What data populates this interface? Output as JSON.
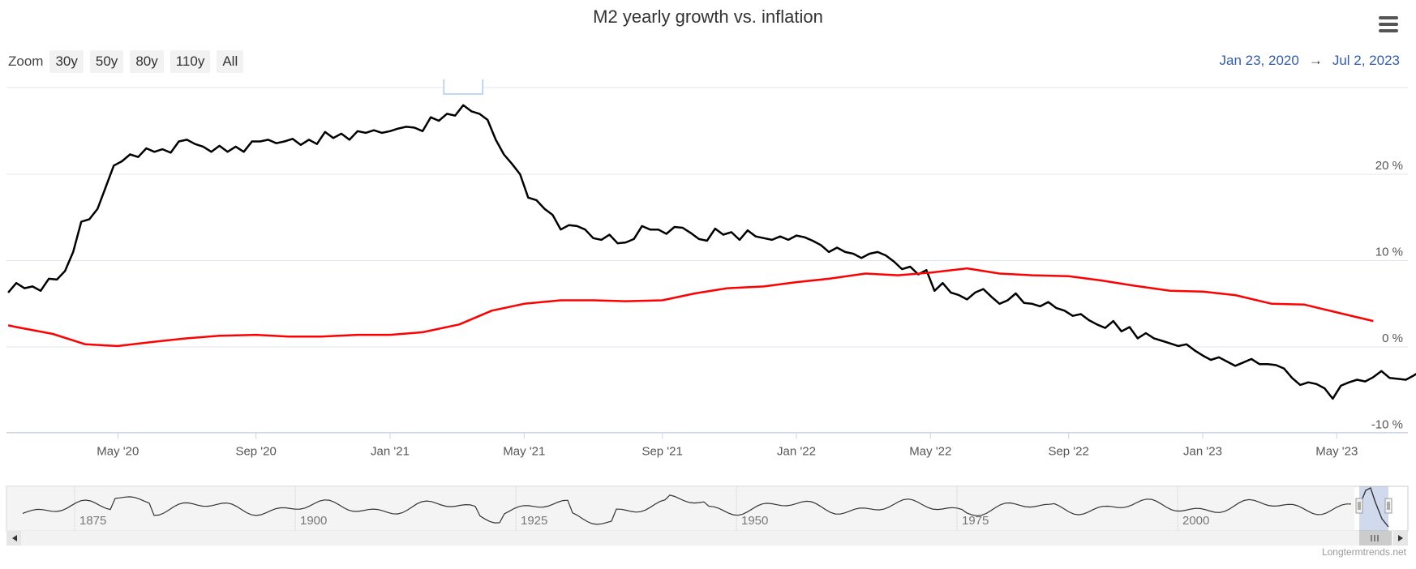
{
  "header": {
    "title": "M2 yearly growth vs. inflation",
    "zoom_label": "Zoom",
    "zoom_buttons": [
      "30y",
      "50y",
      "80y",
      "110y",
      "All"
    ],
    "range_from": "Jan 23, 2020",
    "range_arrow": "→",
    "range_to": "Jul 2, 2023",
    "menu_icon": "hamburger-menu-icon"
  },
  "chart_data": {
    "type": "line",
    "title": "M2 yearly growth vs. inflation",
    "xlabel": "",
    "ylabel": "",
    "xlim": [
      2020.06,
      2023.55
    ],
    "ylim": [
      -10,
      30
    ],
    "x_ticks": [
      {
        "label": "May '20",
        "x": 2020.33
      },
      {
        "label": "Sep '20",
        "x": 2020.67
      },
      {
        "label": "Jan '21",
        "x": 2021.0
      },
      {
        "label": "May '21",
        "x": 2021.33
      },
      {
        "label": "Sep '21",
        "x": 2021.67
      },
      {
        "label": "Jan '22",
        "x": 2022.0
      },
      {
        "label": "May '22",
        "x": 2022.33
      },
      {
        "label": "Sep '22",
        "x": 2022.67
      },
      {
        "label": "Jan '23",
        "x": 2023.0
      },
      {
        "label": "May '23",
        "x": 2023.33
      }
    ],
    "y_ticks": [
      {
        "label": "20 %",
        "y": 20
      },
      {
        "label": "10 %",
        "y": 10
      },
      {
        "label": "0 %",
        "y": 0
      },
      {
        "label": "-10 %",
        "y": -10
      }
    ],
    "grid": true,
    "series": [
      {
        "name": "M2 yearly growth",
        "color": "#000000",
        "points": [
          [
            2020.06,
            6.3
          ],
          [
            2020.08,
            7.4
          ],
          [
            2020.1,
            6.8
          ],
          [
            2020.12,
            7.0
          ],
          [
            2020.14,
            6.5
          ],
          [
            2020.16,
            7.9
          ],
          [
            2020.18,
            7.8
          ],
          [
            2020.2,
            8.8
          ],
          [
            2020.22,
            11.0
          ],
          [
            2020.24,
            14.5
          ],
          [
            2020.26,
            14.8
          ],
          [
            2020.28,
            16.0
          ],
          [
            2020.3,
            18.5
          ],
          [
            2020.32,
            21.0
          ],
          [
            2020.34,
            21.5
          ],
          [
            2020.36,
            22.3
          ],
          [
            2020.38,
            22.0
          ],
          [
            2020.4,
            23.0
          ],
          [
            2020.42,
            22.6
          ],
          [
            2020.44,
            22.9
          ],
          [
            2020.46,
            22.5
          ],
          [
            2020.48,
            23.8
          ],
          [
            2020.5,
            24.0
          ],
          [
            2020.52,
            23.5
          ],
          [
            2020.54,
            23.2
          ],
          [
            2020.56,
            22.6
          ],
          [
            2020.58,
            23.3
          ],
          [
            2020.6,
            22.6
          ],
          [
            2020.62,
            23.2
          ],
          [
            2020.64,
            22.6
          ],
          [
            2020.66,
            23.8
          ],
          [
            2020.68,
            23.8
          ],
          [
            2020.7,
            24.0
          ],
          [
            2020.72,
            23.6
          ],
          [
            2020.74,
            23.8
          ],
          [
            2020.76,
            24.1
          ],
          [
            2020.78,
            23.4
          ],
          [
            2020.8,
            24.0
          ],
          [
            2020.82,
            23.5
          ],
          [
            2020.84,
            24.9
          ],
          [
            2020.86,
            24.2
          ],
          [
            2020.88,
            24.7
          ],
          [
            2020.9,
            24.0
          ],
          [
            2020.92,
            25.0
          ],
          [
            2020.94,
            24.8
          ],
          [
            2020.96,
            25.1
          ],
          [
            2020.98,
            24.8
          ],
          [
            2021.0,
            25.0
          ],
          [
            2021.02,
            25.3
          ],
          [
            2021.04,
            25.5
          ],
          [
            2021.06,
            25.4
          ],
          [
            2021.08,
            25.0
          ],
          [
            2021.1,
            26.6
          ],
          [
            2021.12,
            26.2
          ],
          [
            2021.14,
            27.0
          ],
          [
            2021.16,
            26.8
          ],
          [
            2021.18,
            28.0
          ],
          [
            2021.2,
            27.3
          ],
          [
            2021.22,
            27.0
          ],
          [
            2021.24,
            26.3
          ],
          [
            2021.26,
            24.0
          ],
          [
            2021.28,
            22.3
          ],
          [
            2021.3,
            21.2
          ],
          [
            2021.32,
            20.0
          ],
          [
            2021.34,
            17.3
          ],
          [
            2021.36,
            17.0
          ],
          [
            2021.38,
            16.0
          ],
          [
            2021.4,
            15.3
          ],
          [
            2021.42,
            13.6
          ],
          [
            2021.44,
            14.1
          ],
          [
            2021.46,
            14.0
          ],
          [
            2021.48,
            13.6
          ],
          [
            2021.5,
            12.6
          ],
          [
            2021.52,
            12.4
          ],
          [
            2021.54,
            13.0
          ],
          [
            2021.56,
            12.0
          ],
          [
            2021.58,
            12.1
          ],
          [
            2021.6,
            12.5
          ],
          [
            2021.62,
            14.0
          ],
          [
            2021.64,
            13.6
          ],
          [
            2021.66,
            13.6
          ],
          [
            2021.68,
            13.1
          ],
          [
            2021.7,
            13.9
          ],
          [
            2021.72,
            13.8
          ],
          [
            2021.74,
            13.2
          ],
          [
            2021.76,
            12.5
          ],
          [
            2021.78,
            12.3
          ],
          [
            2021.8,
            13.7
          ],
          [
            2021.82,
            13.0
          ],
          [
            2021.84,
            13.3
          ],
          [
            2021.86,
            12.4
          ],
          [
            2021.88,
            13.5
          ],
          [
            2021.9,
            12.8
          ],
          [
            2021.92,
            12.6
          ],
          [
            2021.94,
            12.4
          ],
          [
            2021.96,
            12.8
          ],
          [
            2021.98,
            12.4
          ],
          [
            2022.0,
            12.9
          ],
          [
            2022.02,
            12.7
          ],
          [
            2022.04,
            12.3
          ],
          [
            2022.06,
            11.8
          ],
          [
            2022.08,
            11.0
          ],
          [
            2022.1,
            11.5
          ],
          [
            2022.12,
            11.0
          ],
          [
            2022.14,
            10.8
          ],
          [
            2022.16,
            10.3
          ],
          [
            2022.18,
            10.8
          ],
          [
            2022.2,
            11.0
          ],
          [
            2022.22,
            10.6
          ],
          [
            2022.24,
            9.9
          ],
          [
            2022.26,
            9.0
          ],
          [
            2022.28,
            9.3
          ],
          [
            2022.3,
            8.4
          ],
          [
            2022.32,
            8.9
          ],
          [
            2022.34,
            6.5
          ],
          [
            2022.36,
            7.4
          ],
          [
            2022.38,
            6.3
          ],
          [
            2022.4,
            6.0
          ],
          [
            2022.42,
            5.5
          ],
          [
            2022.44,
            6.3
          ],
          [
            2022.46,
            6.7
          ],
          [
            2022.48,
            5.8
          ],
          [
            2022.5,
            5.0
          ],
          [
            2022.52,
            5.4
          ],
          [
            2022.54,
            6.2
          ],
          [
            2022.56,
            5.1
          ],
          [
            2022.58,
            5.0
          ],
          [
            2022.6,
            4.7
          ],
          [
            2022.62,
            5.2
          ],
          [
            2022.64,
            4.5
          ],
          [
            2022.66,
            4.2
          ],
          [
            2022.68,
            3.6
          ],
          [
            2022.7,
            3.8
          ],
          [
            2022.72,
            3.1
          ],
          [
            2022.74,
            2.6
          ],
          [
            2022.76,
            2.2
          ],
          [
            2022.78,
            3.0
          ],
          [
            2022.8,
            1.8
          ],
          [
            2022.82,
            2.3
          ],
          [
            2022.84,
            1.0
          ],
          [
            2022.86,
            1.6
          ],
          [
            2022.88,
            1.0
          ],
          [
            2022.9,
            0.7
          ],
          [
            2022.92,
            0.4
          ],
          [
            2022.94,
            0.1
          ],
          [
            2022.96,
            0.3
          ],
          [
            2022.98,
            -0.4
          ],
          [
            2023.0,
            -1.0
          ],
          [
            2023.02,
            -1.5
          ],
          [
            2023.04,
            -1.2
          ],
          [
            2023.06,
            -1.7
          ],
          [
            2023.08,
            -2.2
          ],
          [
            2023.1,
            -1.8
          ],
          [
            2023.12,
            -1.4
          ],
          [
            2023.14,
            -2.0
          ],
          [
            2023.16,
            -2.0
          ],
          [
            2023.18,
            -2.1
          ],
          [
            2023.2,
            -2.5
          ],
          [
            2023.22,
            -3.6
          ],
          [
            2023.24,
            -4.4
          ],
          [
            2023.26,
            -4.1
          ],
          [
            2023.28,
            -4.3
          ],
          [
            2023.3,
            -4.8
          ],
          [
            2023.32,
            -6.0
          ],
          [
            2023.34,
            -4.5
          ],
          [
            2023.36,
            -4.1
          ],
          [
            2023.38,
            -3.8
          ],
          [
            2023.4,
            -4.0
          ],
          [
            2023.42,
            -3.5
          ],
          [
            2023.44,
            -2.8
          ],
          [
            2023.46,
            -3.6
          ],
          [
            2023.48,
            -3.7
          ],
          [
            2023.5,
            -3.8
          ],
          [
            2023.52,
            -3.3
          ],
          [
            2023.53,
            -3.0
          ]
        ]
      },
      {
        "name": "Inflation",
        "color": "#ff0000",
        "points": [
          [
            2020.06,
            2.5
          ],
          [
            2020.08,
            2.3
          ],
          [
            2020.17,
            1.5
          ],
          [
            2020.25,
            0.3
          ],
          [
            2020.33,
            0.1
          ],
          [
            2020.42,
            0.6
          ],
          [
            2020.5,
            1.0
          ],
          [
            2020.58,
            1.3
          ],
          [
            2020.67,
            1.4
          ],
          [
            2020.75,
            1.2
          ],
          [
            2020.83,
            1.2
          ],
          [
            2020.92,
            1.4
          ],
          [
            2021.0,
            1.4
          ],
          [
            2021.08,
            1.7
          ],
          [
            2021.17,
            2.6
          ],
          [
            2021.25,
            4.2
          ],
          [
            2021.33,
            5.0
          ],
          [
            2021.42,
            5.4
          ],
          [
            2021.5,
            5.4
          ],
          [
            2021.58,
            5.3
          ],
          [
            2021.67,
            5.4
          ],
          [
            2021.75,
            6.2
          ],
          [
            2021.83,
            6.8
          ],
          [
            2021.92,
            7.0
          ],
          [
            2022.0,
            7.5
          ],
          [
            2022.08,
            7.9
          ],
          [
            2022.17,
            8.5
          ],
          [
            2022.25,
            8.3
          ],
          [
            2022.33,
            8.6
          ],
          [
            2022.42,
            9.1
          ],
          [
            2022.5,
            8.5
          ],
          [
            2022.58,
            8.3
          ],
          [
            2022.67,
            8.2
          ],
          [
            2022.75,
            7.7
          ],
          [
            2022.83,
            7.1
          ],
          [
            2022.92,
            6.5
          ],
          [
            2023.0,
            6.4
          ],
          [
            2023.08,
            6.0
          ],
          [
            2023.17,
            5.0
          ],
          [
            2023.25,
            4.9
          ],
          [
            2023.33,
            4.0
          ],
          [
            2023.42,
            3.0
          ]
        ]
      }
    ],
    "navigator": {
      "year_labels": [
        "1875",
        "1900",
        "1925",
        "1950",
        "1975",
        "2000"
      ]
    }
  },
  "credits": "Longtermtrends.net"
}
